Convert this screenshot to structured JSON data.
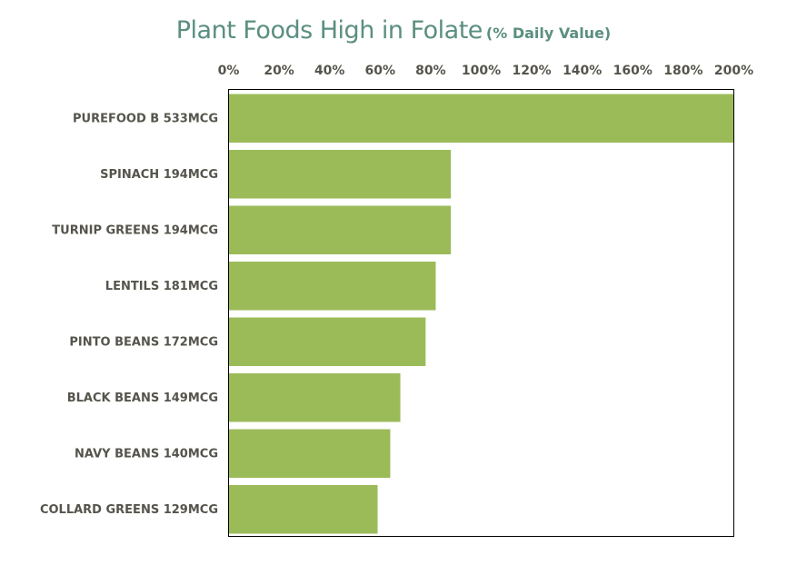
{
  "chart_data": {
    "type": "bar",
    "orientation": "horizontal",
    "title": "Plant Foods High in Folate",
    "subtitle": "(% Daily Value)",
    "categories": [
      "PUREFOOD B 533MCG",
      "SPINACH 194MCG",
      "TURNIP GREENS 194MCG",
      "LENTILS 181MCG",
      "PINTO BEANS 172MCG",
      "BLACK BEANS 149MCG",
      "NAVY BEANS 140MCG",
      "COLLARD GREENS 129MCG"
    ],
    "values": [
      200,
      88,
      88,
      82,
      78,
      68,
      64,
      59
    ],
    "xlim": [
      0,
      200
    ],
    "xticks": [
      "0%",
      "20%",
      "40%",
      "60%",
      "80%",
      "100%",
      "120%",
      "140%",
      "160%",
      "180%",
      "200%"
    ],
    "xaxis_position": "top",
    "grid": false,
    "bar_color": "#9bbb59",
    "title_color": "#5b8f80",
    "label_color": "#55544c"
  }
}
